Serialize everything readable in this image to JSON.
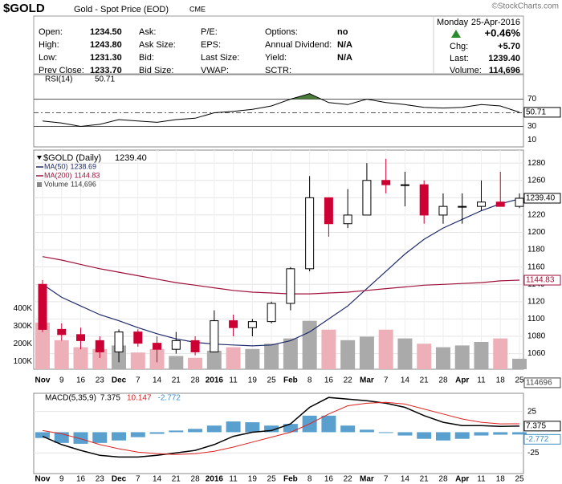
{
  "header": {
    "symbol": "$GOLD",
    "name": "Gold - Spot Price (EOD)",
    "exchange": "CME",
    "watermark": "©StockCharts.com"
  },
  "quote": {
    "fields": [
      {
        "label": "Open:",
        "value": "1234.50"
      },
      {
        "label": "High:",
        "value": "1243.80"
      },
      {
        "label": "Low:",
        "value": "1231.30"
      },
      {
        "label": "Prev Close:",
        "value": "1233.70"
      },
      {
        "label": "Ask:"
      },
      {
        "label": "Ask Size:"
      },
      {
        "label": "Bid:"
      },
      {
        "label": "Bid Size:"
      },
      {
        "label": "P/E:"
      },
      {
        "label": "EPS:"
      },
      {
        "label": "Last Size:"
      },
      {
        "label": "VWAP:"
      },
      {
        "label": "Options:",
        "value": "no"
      },
      {
        "label": "Annual Dividend:",
        "value": "N/A"
      },
      {
        "label": "Yield:",
        "value": "N/A"
      },
      {
        "label": "SCTR:"
      }
    ],
    "day": "Monday",
    "date": "25-Apr-2016",
    "change_pct": "+0.46%",
    "chg_label": "Chg:",
    "chg": "+5.70",
    "last_label": "Last:",
    "last": "1239.40",
    "volume_label": "Volume:",
    "volume": "114,696"
  },
  "chart_data": [
    {
      "type": "rsi",
      "name": "RSI(14)",
      "values": [
        38,
        35,
        30,
        33,
        40,
        38,
        36,
        40,
        42,
        50,
        52,
        55,
        60,
        70,
        78,
        65,
        62,
        70,
        65,
        62,
        58,
        57,
        58,
        62,
        60,
        50.71
      ],
      "color": "#000000",
      "ylim": [
        0,
        100
      ],
      "yticks": [
        70,
        30,
        10
      ],
      "levels": [
        70,
        50,
        30
      ],
      "fill_above": "#4a7a3a",
      "fill_below": "#8a4a40"
    },
    {
      "type": "candlestick",
      "name": "$GOLD (Daily)",
      "categories": [
        "Nov",
        "9",
        "16",
        "23",
        "Dec",
        "7",
        "14",
        "21",
        "28",
        "2016",
        "11",
        "19",
        "25",
        "Feb",
        "8",
        "16",
        "22",
        "Mar",
        "7",
        "14",
        "21",
        "28",
        "Apr",
        "11",
        "18",
        "25"
      ],
      "open": [
        1140,
        1088,
        1082,
        1075,
        1062,
        1085,
        1072,
        1065,
        1075,
        1062,
        1098,
        1090,
        1097,
        1118,
        1158,
        1240,
        1210,
        1220,
        1260,
        1255,
        1255,
        1220,
        1230,
        1230,
        1235,
        1230
      ],
      "high": [
        1145,
        1095,
        1090,
        1080,
        1088,
        1088,
        1080,
        1085,
        1080,
        1110,
        1105,
        1100,
        1120,
        1160,
        1265,
        1240,
        1250,
        1280,
        1285,
        1270,
        1260,
        1245,
        1245,
        1260,
        1270,
        1245
      ],
      "low": [
        1085,
        1075,
        1065,
        1055,
        1050,
        1068,
        1050,
        1060,
        1058,
        1062,
        1080,
        1080,
        1095,
        1110,
        1155,
        1195,
        1205,
        1220,
        1245,
        1230,
        1210,
        1210,
        1210,
        1225,
        1230,
        1228
      ],
      "close": [
        1088,
        1082,
        1075,
        1062,
        1085,
        1072,
        1065,
        1075,
        1062,
        1098,
        1090,
        1097,
        1118,
        1158,
        1240,
        1210,
        1220,
        1260,
        1255,
        1255,
        1220,
        1230,
        1230,
        1235,
        1230,
        1239.4
      ],
      "up_color": "#000000",
      "down_color": "#cc0033",
      "ylim": [
        1042,
        1295
      ],
      "yticks": [
        1060,
        1080,
        1100,
        1120,
        1140,
        1160,
        1180,
        1200,
        1220,
        1240,
        1260,
        1280
      ],
      "grid": true,
      "series": [
        {
          "name": "MA(50)",
          "color": "#1f2a6b",
          "values": [
            1140,
            1125,
            1115,
            1105,
            1098,
            1090,
            1083,
            1077,
            1073,
            1071,
            1070,
            1069,
            1070,
            1075,
            1085,
            1100,
            1115,
            1135,
            1155,
            1175,
            1192,
            1205,
            1215,
            1225,
            1233,
            1238.69
          ]
        },
        {
          "name": "MA(200)",
          "color": "#a0103a",
          "values": [
            1172,
            1168,
            1163,
            1158,
            1154,
            1150,
            1146,
            1142,
            1139,
            1136,
            1133,
            1131,
            1130,
            1129,
            1129,
            1130,
            1131,
            1133,
            1135,
            1137,
            1139,
            1140,
            1141,
            1142,
            1144,
            1144.83
          ]
        },
        {
          "name": "Volume",
          "type": "bar",
          "axis": "y2",
          "up_color": "#aaaaaa",
          "down_color": "#eeb0b8",
          "values": [
            320000,
            220000,
            180000,
            170000,
            190000,
            150000,
            170000,
            130000,
            120000,
            160000,
            180000,
            170000,
            200000,
            230000,
            330000,
            280000,
            220000,
            240000,
            280000,
            230000,
            200000,
            180000,
            190000,
            210000,
            230000,
            114696
          ]
        }
      ],
      "y2lim": [
        55000,
        1300000
      ],
      "y2ticks": [
        {
          "value": 100000,
          "label": "100K"
        },
        {
          "value": 200000,
          "label": "200K"
        },
        {
          "value": 300000,
          "label": "300K"
        },
        {
          "value": 400000,
          "label": "400K"
        }
      ]
    },
    {
      "type": "macd",
      "name": "MACD(5,35,9)",
      "categories": [
        "Nov",
        "9",
        "16",
        "23",
        "Dec",
        "7",
        "14",
        "21",
        "28",
        "2016",
        "11",
        "19",
        "25",
        "Feb",
        "8",
        "16",
        "22",
        "Mar",
        "7",
        "14",
        "21",
        "28",
        "Apr",
        "11",
        "18",
        "25"
      ],
      "series": [
        {
          "color": "#000000",
          "values": [
            -5,
            -15,
            -22,
            -28,
            -30,
            -30,
            -28,
            -25,
            -22,
            -15,
            -5,
            0,
            2,
            10,
            30,
            42,
            40,
            38,
            35,
            30,
            20,
            12,
            8,
            8,
            7,
            7.375
          ]
        },
        {
          "color": "#e02020",
          "values": [
            2,
            -2,
            -8,
            -15,
            -20,
            -24,
            -26,
            -27,
            -26,
            -23,
            -18,
            -12,
            -6,
            0,
            10,
            22,
            32,
            35,
            36,
            34,
            28,
            22,
            16,
            12,
            10,
            10.147
          ]
        },
        {
          "type": "bar",
          "color": "#3d8fc6",
          "values": [
            -7,
            -13,
            -14,
            -13,
            -10,
            -6,
            -2,
            2,
            4,
            8,
            13,
            12,
            8,
            10,
            20,
            20,
            8,
            3,
            -1,
            -4,
            -8,
            -10,
            -8,
            -4,
            -3,
            -2.772
          ]
        }
      ],
      "ylim": [
        -50,
        47
      ],
      "yticks": [
        25,
        -25
      ]
    }
  ]
}
